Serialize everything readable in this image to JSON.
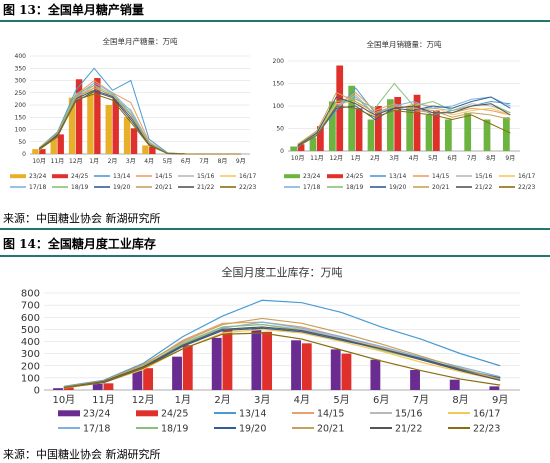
{
  "fig13": {
    "title": "图 13：全国单月糖产销量",
    "source": "来源：中国糖业协会 新湖研究所"
  },
  "fig14": {
    "title": "图 14：全国糖月度工业库存",
    "source": "来源：中国糖业协会 新湖研究所"
  },
  "colors": {
    "rule": "#1f7a6d",
    "bar_purple": "#6a2c91",
    "bar_red": "#e0302c",
    "bar_green": "#6cb33f"
  },
  "chart_data": [
    {
      "id": "production",
      "type": "bar",
      "title": "全国单月产糖量：万吨",
      "categories": [
        "10月",
        "11月",
        "12月",
        "1月",
        "2月",
        "3月",
        "4月",
        "5月",
        "6月",
        "7月",
        "8月",
        "9月"
      ],
      "ylim": [
        0,
        400
      ],
      "yticks": [
        0,
        50,
        100,
        150,
        200,
        250,
        300,
        350,
        400
      ],
      "bar_series": [
        {
          "name": "23/24",
          "color": "#e8b02a",
          "values": [
            20,
            70,
            230,
            260,
            200,
            150,
            35,
            0,
            0,
            0,
            0,
            0
          ]
        },
        {
          "name": "24/25",
          "color": "#e0302c",
          "values": [
            20,
            80,
            305,
            310,
            225,
            105,
            30,
            0,
            0,
            0,
            0,
            0
          ]
        }
      ],
      "line_series": [
        {
          "name": "13/14",
          "color": "#4a9bd4",
          "values": [
            25,
            90,
            260,
            350,
            260,
            300,
            60,
            5,
            0,
            0,
            0,
            0
          ]
        },
        {
          "name": "14/15",
          "color": "#e9a06a",
          "values": [
            20,
            85,
            240,
            300,
            250,
            210,
            50,
            3,
            0,
            0,
            0,
            0
          ]
        },
        {
          "name": "15/16",
          "color": "#b8b8b8",
          "values": [
            18,
            80,
            230,
            280,
            230,
            180,
            45,
            3,
            0,
            0,
            0,
            0
          ]
        },
        {
          "name": "16/17",
          "color": "#f5c85a",
          "values": [
            15,
            75,
            220,
            270,
            240,
            160,
            40,
            2,
            0,
            0,
            0,
            0
          ]
        },
        {
          "name": "17/18",
          "color": "#7fb2e0",
          "values": [
            20,
            80,
            235,
            290,
            250,
            175,
            45,
            3,
            0,
            0,
            0,
            0
          ]
        },
        {
          "name": "18/19",
          "color": "#8ac07a",
          "values": [
            25,
            85,
            245,
            280,
            245,
            165,
            45,
            3,
            0,
            0,
            0,
            0
          ]
        },
        {
          "name": "19/20",
          "color": "#2f5f95",
          "values": [
            18,
            80,
            225,
            260,
            235,
            150,
            40,
            2,
            0,
            0,
            0,
            0
          ]
        },
        {
          "name": "20/21",
          "color": "#c6a15c",
          "values": [
            20,
            85,
            230,
            270,
            240,
            160,
            40,
            2,
            0,
            0,
            0,
            0
          ]
        },
        {
          "name": "21/22",
          "color": "#555555",
          "values": [
            22,
            75,
            215,
            255,
            230,
            140,
            38,
            2,
            0,
            0,
            0,
            0
          ]
        },
        {
          "name": "22/23",
          "color": "#8a6d0f",
          "values": [
            18,
            70,
            220,
            245,
            220,
            130,
            35,
            2,
            0,
            0,
            0,
            0
          ]
        }
      ]
    },
    {
      "id": "sales",
      "type": "bar",
      "title": "全国单月销糖量：万吨",
      "categories": [
        "10月",
        "11月",
        "12月",
        "1月",
        "2月",
        "3月",
        "4月",
        "5月",
        "6月",
        "7月",
        "8月",
        "9月"
      ],
      "ylim": [
        0,
        200
      ],
      "yticks": [
        0,
        50,
        100,
        150,
        200
      ],
      "bar_series": [
        {
          "name": "23/24",
          "color": "#6cb33f",
          "values": [
            10,
            30,
            110,
            145,
            70,
            115,
            100,
            80,
            70,
            85,
            70,
            75
          ]
        },
        {
          "name": "24/25",
          "color": "#e0302c",
          "values": [
            15,
            55,
            190,
            95,
            100,
            120,
            125,
            90,
            0,
            0,
            0,
            0
          ]
        }
      ],
      "line_series": [
        {
          "name": "13/14",
          "color": "#4a9bd4",
          "values": [
            8,
            40,
            90,
            140,
            85,
            95,
            100,
            80,
            90,
            100,
            110,
            105
          ]
        },
        {
          "name": "14/15",
          "color": "#e9a06a",
          "values": [
            12,
            45,
            100,
            130,
            90,
            105,
            90,
            85,
            85,
            95,
            90,
            80
          ]
        },
        {
          "name": "15/16",
          "color": "#b8b8b8",
          "values": [
            10,
            35,
            95,
            125,
            80,
            100,
            95,
            95,
            90,
            105,
            100,
            85
          ]
        },
        {
          "name": "16/17",
          "color": "#f5c85a",
          "values": [
            15,
            40,
            105,
            110,
            75,
            90,
            105,
            100,
            80,
            90,
            95,
            80
          ]
        },
        {
          "name": "17/18",
          "color": "#7fb2e0",
          "values": [
            10,
            38,
            100,
            120,
            80,
            100,
            110,
            95,
            100,
            115,
            120,
            100
          ]
        },
        {
          "name": "18/19",
          "color": "#8ac07a",
          "values": [
            12,
            42,
            110,
            115,
            95,
            150,
            100,
            110,
            90,
            100,
            105,
            85
          ]
        },
        {
          "name": "19/20",
          "color": "#2f5f95",
          "values": [
            10,
            35,
            95,
            100,
            70,
            95,
            90,
            100,
            95,
            110,
            120,
            95
          ]
        },
        {
          "name": "20/21",
          "color": "#c6a15c",
          "values": [
            15,
            45,
            130,
            110,
            85,
            100,
            95,
            90,
            75,
            85,
            80,
            70
          ]
        },
        {
          "name": "21/22",
          "color": "#555555",
          "values": [
            12,
            40,
            120,
            105,
            80,
            95,
            100,
            85,
            85,
            100,
            105,
            80
          ]
        },
        {
          "name": "22/23",
          "color": "#8a6d0f",
          "values": [
            10,
            35,
            100,
            95,
            75,
            90,
            85,
            80,
            70,
            80,
            60,
            40
          ]
        }
      ]
    },
    {
      "id": "inventory",
      "type": "bar",
      "title": "全国月度工业库存：万吨",
      "categories": [
        "10月",
        "11月",
        "12月",
        "1月",
        "2月",
        "3月",
        "4月",
        "5月",
        "6月",
        "7月",
        "8月",
        "9月"
      ],
      "ylim": [
        0,
        800
      ],
      "yticks": [
        0,
        100,
        200,
        300,
        400,
        500,
        600,
        700,
        800
      ],
      "bar_series": [
        {
          "name": "23/24",
          "color": "#6a2c91",
          "values": [
            15,
            50,
            160,
            275,
            430,
            510,
            410,
            335,
            250,
            165,
            85,
            30
          ]
        },
        {
          "name": "24/25",
          "color": "#e0302c",
          "values": [
            20,
            55,
            180,
            370,
            495,
            480,
            385,
            300,
            0,
            0,
            0,
            0
          ]
        }
      ],
      "line_series": [
        {
          "name": "13/14",
          "color": "#4a9bd4",
          "values": [
            30,
            80,
            220,
            440,
            610,
            740,
            720,
            640,
            520,
            420,
            300,
            200
          ]
        },
        {
          "name": "14/15",
          "color": "#e9a06a",
          "values": [
            25,
            70,
            200,
            410,
            550,
            560,
            520,
            440,
            350,
            260,
            170,
            90
          ]
        },
        {
          "name": "15/16",
          "color": "#b8b8b8",
          "values": [
            20,
            65,
            190,
            390,
            520,
            540,
            500,
            430,
            340,
            250,
            170,
            100
          ]
        },
        {
          "name": "16/17",
          "color": "#f5c85a",
          "values": [
            15,
            60,
            170,
            340,
            470,
            500,
            470,
            400,
            320,
            230,
            150,
            80
          ]
        },
        {
          "name": "17/18",
          "color": "#7fb2e0",
          "values": [
            18,
            65,
            185,
            370,
            510,
            560,
            510,
            440,
            360,
            270,
            190,
            110
          ]
        },
        {
          "name": "18/19",
          "color": "#8ac07a",
          "values": [
            22,
            70,
            195,
            380,
            520,
            540,
            490,
            420,
            330,
            250,
            160,
            80
          ]
        },
        {
          "name": "19/20",
          "color": "#2f5f95",
          "values": [
            20,
            60,
            180,
            360,
            490,
            510,
            480,
            410,
            340,
            260,
            170,
            100
          ]
        },
        {
          "name": "20/21",
          "color": "#c6a15c",
          "values": [
            25,
            75,
            210,
            400,
            540,
            590,
            550,
            470,
            380,
            280,
            180,
            90
          ]
        },
        {
          "name": "21/22",
          "color": "#555555",
          "values": [
            20,
            70,
            190,
            370,
            500,
            520,
            490,
            420,
            340,
            250,
            160,
            80
          ]
        },
        {
          "name": "22/23",
          "color": "#8a6d0f",
          "values": [
            18,
            65,
            180,
            340,
            460,
            470,
            420,
            330,
            240,
            160,
            90,
            40
          ]
        }
      ]
    }
  ]
}
